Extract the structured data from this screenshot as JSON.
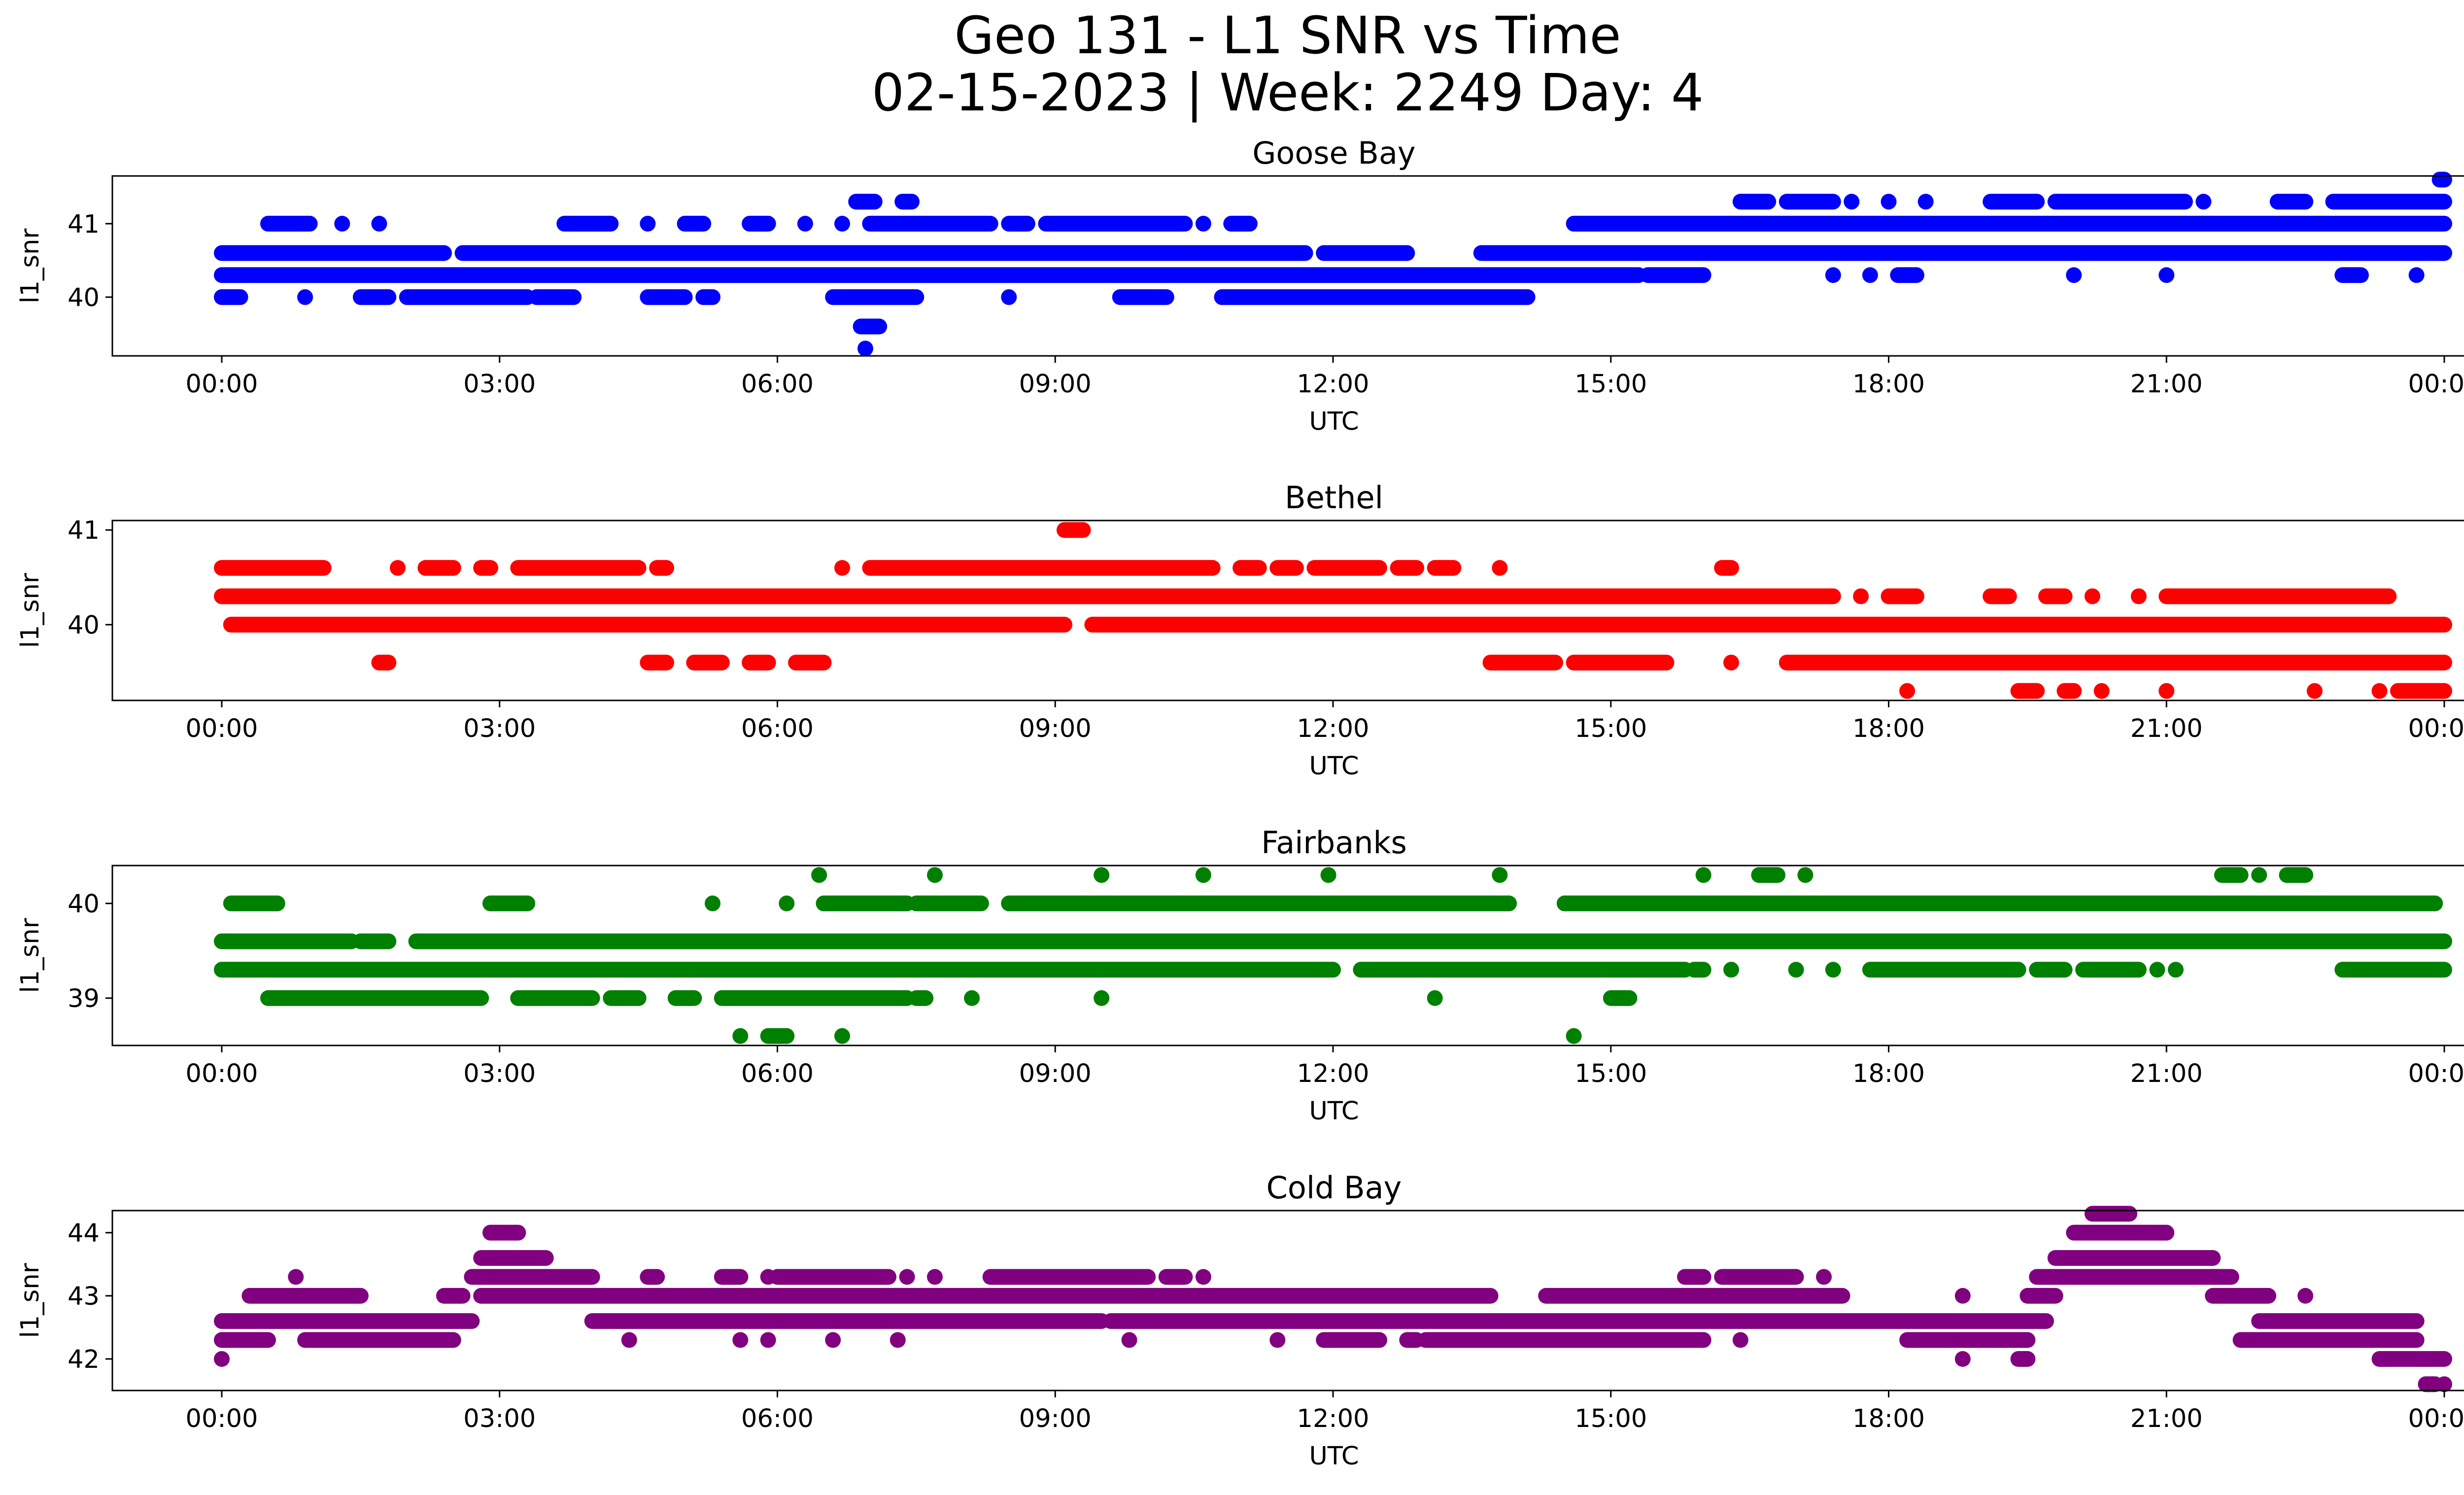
{
  "figure": {
    "title_line1": "Geo 131 - L1 SNR vs Time",
    "title_line2": "02-15-2023 | Week: 2249 Day: 4"
  },
  "chart_data": [
    {
      "type": "scatter",
      "title": "Goose Bay",
      "xlabel": "UTC",
      "ylabel": "l1_snr",
      "color": "#0000ff",
      "xticks": [
        "00:00",
        "03:00",
        "06:00",
        "09:00",
        "12:00",
        "15:00",
        "18:00",
        "21:00",
        "00:00"
      ],
      "yticks": [
        40,
        41
      ],
      "ylim": [
        39.2,
        41.65
      ],
      "levels": [
        {
          "y": 41.6,
          "ranges": [
            [
              23.95,
              24.0
            ]
          ]
        },
        {
          "y": 41.3,
          "ranges": [
            [
              6.85,
              7.05
            ],
            [
              7.35,
              7.45
            ],
            [
              16.4,
              16.7
            ],
            [
              16.9,
              17.4
            ],
            [
              17.6,
              17.6
            ],
            [
              18.0,
              18.0
            ],
            [
              18.4,
              18.4
            ],
            [
              19.1,
              19.6
            ],
            [
              19.8,
              21.2
            ],
            [
              21.4,
              21.4
            ],
            [
              22.2,
              22.5
            ],
            [
              22.8,
              24.0
            ]
          ]
        },
        {
          "y": 41.0,
          "ranges": [
            [
              0.5,
              0.95
            ],
            [
              1.3,
              1.3
            ],
            [
              1.7,
              1.7
            ],
            [
              3.7,
              4.2
            ],
            [
              4.6,
              4.6
            ],
            [
              5.0,
              5.2
            ],
            [
              5.7,
              5.9
            ],
            [
              6.3,
              6.3
            ],
            [
              6.7,
              6.7
            ],
            [
              7.0,
              8.3
            ],
            [
              8.5,
              8.7
            ],
            [
              8.9,
              10.4
            ],
            [
              10.6,
              10.6
            ],
            [
              10.9,
              11.1
            ],
            [
              14.6,
              24.0
            ]
          ]
        },
        {
          "y": 40.6,
          "ranges": [
            [
              0.0,
              2.4
            ],
            [
              2.6,
              11.7
            ],
            [
              11.9,
              12.8
            ],
            [
              13.6,
              24.0
            ]
          ]
        },
        {
          "y": 40.3,
          "ranges": [
            [
              0.0,
              15.3
            ],
            [
              15.4,
              16.0
            ],
            [
              17.4,
              17.4
            ],
            [
              17.8,
              17.8
            ],
            [
              18.1,
              18.3
            ],
            [
              20.0,
              20.0
            ],
            [
              21.0,
              21.0
            ],
            [
              22.9,
              23.1
            ],
            [
              23.7,
              23.7
            ]
          ]
        },
        {
          "y": 40.0,
          "ranges": [
            [
              0.0,
              0.2
            ],
            [
              0.9,
              0.9
            ],
            [
              1.5,
              1.8
            ],
            [
              2.0,
              3.3
            ],
            [
              3.4,
              3.8
            ],
            [
              4.6,
              5.0
            ],
            [
              5.2,
              5.3
            ],
            [
              6.6,
              7.5
            ],
            [
              8.5,
              8.5
            ],
            [
              9.7,
              10.2
            ],
            [
              10.8,
              14.1
            ]
          ]
        },
        {
          "y": 39.6,
          "ranges": [
            [
              6.9,
              7.1
            ]
          ]
        },
        {
          "y": 39.3,
          "ranges": [
            [
              6.95,
              6.95
            ]
          ]
        }
      ]
    },
    {
      "type": "scatter",
      "title": "Bethel",
      "xlabel": "UTC",
      "ylabel": "l1_snr",
      "color": "#ff0000",
      "xticks": [
        "00:00",
        "03:00",
        "06:00",
        "09:00",
        "12:00",
        "15:00",
        "18:00",
        "21:00",
        "00:00"
      ],
      "yticks": [
        40,
        41
      ],
      "ylim": [
        39.2,
        41.1
      ],
      "levels": [
        {
          "y": 41.0,
          "ranges": [
            [
              9.1,
              9.3
            ]
          ]
        },
        {
          "y": 40.6,
          "ranges": [
            [
              0.0,
              1.1
            ],
            [
              1.9,
              1.9
            ],
            [
              2.2,
              2.5
            ],
            [
              2.8,
              2.9
            ],
            [
              3.2,
              4.5
            ],
            [
              4.7,
              4.8
            ],
            [
              6.7,
              6.7
            ],
            [
              7.0,
              10.7
            ],
            [
              11.0,
              11.2
            ],
            [
              11.4,
              11.6
            ],
            [
              11.8,
              12.5
            ],
            [
              12.7,
              12.9
            ],
            [
              13.1,
              13.3
            ],
            [
              13.8,
              13.8
            ],
            [
              16.2,
              16.3
            ]
          ]
        },
        {
          "y": 40.3,
          "ranges": [
            [
              0.0,
              17.4
            ],
            [
              17.7,
              17.7
            ],
            [
              18.0,
              18.3
            ],
            [
              19.1,
              19.3
            ],
            [
              19.7,
              19.9
            ],
            [
              20.2,
              20.2
            ],
            [
              20.7,
              20.7
            ],
            [
              21.0,
              23.4
            ]
          ]
        },
        {
          "y": 40.0,
          "ranges": [
            [
              0.1,
              9.1
            ],
            [
              9.4,
              24.0
            ]
          ]
        },
        {
          "y": 39.6,
          "ranges": [
            [
              1.7,
              1.8
            ],
            [
              4.6,
              4.8
            ],
            [
              5.1,
              5.4
            ],
            [
              5.7,
              5.9
            ],
            [
              6.2,
              6.5
            ],
            [
              13.7,
              14.4
            ],
            [
              14.6,
              15.6
            ],
            [
              16.3,
              16.3
            ],
            [
              16.9,
              24.0
            ]
          ]
        },
        {
          "y": 39.3,
          "ranges": [
            [
              18.2,
              18.2
            ],
            [
              19.4,
              19.6
            ],
            [
              19.9,
              20.0
            ],
            [
              20.3,
              20.3
            ],
            [
              21.0,
              21.0
            ],
            [
              22.6,
              22.6
            ],
            [
              23.3,
              23.3
            ],
            [
              23.5,
              24.0
            ]
          ]
        }
      ]
    },
    {
      "type": "scatter",
      "title": "Fairbanks",
      "xlabel": "UTC",
      "ylabel": "l1_snr",
      "color": "#008000",
      "xticks": [
        "00:00",
        "03:00",
        "06:00",
        "09:00",
        "12:00",
        "15:00",
        "18:00",
        "21:00",
        "00:00"
      ],
      "yticks": [
        39,
        40
      ],
      "ylim": [
        38.5,
        40.4
      ],
      "levels": [
        {
          "y": 40.3,
          "ranges": [
            [
              6.45,
              6.45
            ],
            [
              7.7,
              7.7
            ],
            [
              9.5,
              9.5
            ],
            [
              10.6,
              10.6
            ],
            [
              11.95,
              11.95
            ],
            [
              13.8,
              13.8
            ],
            [
              16.0,
              16.0
            ],
            [
              16.6,
              16.8
            ],
            [
              17.1,
              17.1
            ],
            [
              21.6,
              21.8
            ],
            [
              22.0,
              22.0
            ],
            [
              22.3,
              22.5
            ]
          ]
        },
        {
          "y": 40.0,
          "ranges": [
            [
              0.1,
              0.6
            ],
            [
              2.9,
              3.3
            ],
            [
              5.3,
              5.3
            ],
            [
              6.1,
              6.1
            ],
            [
              6.5,
              7.4
            ],
            [
              7.5,
              8.2
            ],
            [
              8.5,
              13.9
            ],
            [
              14.5,
              23.9
            ]
          ]
        },
        {
          "y": 39.6,
          "ranges": [
            [
              0.0,
              1.4
            ],
            [
              1.5,
              1.8
            ],
            [
              2.1,
              24.0
            ]
          ]
        },
        {
          "y": 39.3,
          "ranges": [
            [
              0.0,
              12.0
            ],
            [
              12.3,
              15.8
            ],
            [
              15.9,
              16.0
            ],
            [
              16.3,
              16.3
            ],
            [
              17.0,
              17.0
            ],
            [
              17.4,
              17.4
            ],
            [
              17.8,
              19.4
            ],
            [
              19.6,
              19.9
            ],
            [
              20.1,
              20.7
            ],
            [
              20.9,
              20.9
            ],
            [
              21.1,
              21.1
            ],
            [
              22.9,
              24.0
            ]
          ]
        },
        {
          "y": 39.0,
          "ranges": [
            [
              0.5,
              2.8
            ],
            [
              3.2,
              4.0
            ],
            [
              4.2,
              4.5
            ],
            [
              4.9,
              5.1
            ],
            [
              5.4,
              7.4
            ],
            [
              7.5,
              7.6
            ],
            [
              8.1,
              8.1
            ],
            [
              9.5,
              9.5
            ],
            [
              13.1,
              13.1
            ],
            [
              15.0,
              15.2
            ]
          ]
        },
        {
          "y": 38.6,
          "ranges": [
            [
              5.6,
              5.6
            ],
            [
              5.9,
              6.1
            ],
            [
              6.7,
              6.7
            ],
            [
              14.6,
              14.6
            ]
          ]
        }
      ]
    },
    {
      "type": "scatter",
      "title": "Cold Bay",
      "xlabel": "UTC",
      "ylabel": "l1_snr",
      "color": "#800080",
      "xticks": [
        "00:00",
        "03:00",
        "06:00",
        "09:00",
        "12:00",
        "15:00",
        "18:00",
        "21:00",
        "00:00"
      ],
      "yticks": [
        42,
        43,
        44
      ],
      "ylim": [
        41.5,
        44.35
      ],
      "levels": [
        {
          "y": 44.3,
          "ranges": [
            [
              20.2,
              20.6
            ]
          ]
        },
        {
          "y": 44.0,
          "ranges": [
            [
              2.9,
              3.2
            ],
            [
              20.0,
              21.0
            ]
          ]
        },
        {
          "y": 43.6,
          "ranges": [
            [
              2.8,
              3.5
            ],
            [
              19.8,
              21.5
            ]
          ]
        },
        {
          "y": 43.3,
          "ranges": [
            [
              0.8,
              0.8
            ],
            [
              2.7,
              4.0
            ],
            [
              4.6,
              4.7
            ],
            [
              5.4,
              5.6
            ],
            [
              5.9,
              5.9
            ],
            [
              6.0,
              7.2
            ],
            [
              7.4,
              7.4
            ],
            [
              7.7,
              7.7
            ],
            [
              8.3,
              10.0
            ],
            [
              10.2,
              10.4
            ],
            [
              10.6,
              10.6
            ],
            [
              15.8,
              16.0
            ],
            [
              16.2,
              17.0
            ],
            [
              17.3,
              17.3
            ],
            [
              19.6,
              21.7
            ]
          ]
        },
        {
          "y": 43.0,
          "ranges": [
            [
              0.3,
              1.5
            ],
            [
              2.4,
              2.6
            ],
            [
              2.8,
              13.7
            ],
            [
              14.3,
              17.5
            ],
            [
              18.8,
              18.8
            ],
            [
              19.5,
              19.8
            ],
            [
              21.5,
              22.1
            ],
            [
              22.5,
              22.5
            ]
          ]
        },
        {
          "y": 42.6,
          "ranges": [
            [
              0.0,
              2.7
            ],
            [
              4.0,
              9.5
            ],
            [
              9.6,
              19.7
            ],
            [
              22.0,
              23.7
            ]
          ]
        },
        {
          "y": 42.3,
          "ranges": [
            [
              0.0,
              0.5
            ],
            [
              0.9,
              2.5
            ],
            [
              4.4,
              4.4
            ],
            [
              5.6,
              5.6
            ],
            [
              5.9,
              5.9
            ],
            [
              6.6,
              6.6
            ],
            [
              7.3,
              7.3
            ],
            [
              9.8,
              9.8
            ],
            [
              11.4,
              11.4
            ],
            [
              11.9,
              12.5
            ],
            [
              12.8,
              12.9
            ],
            [
              13.0,
              16.0
            ],
            [
              16.4,
              16.4
            ],
            [
              18.2,
              19.5
            ],
            [
              21.8,
              23.7
            ]
          ]
        },
        {
          "y": 42.0,
          "ranges": [
            [
              0.0,
              0.0
            ],
            [
              18.8,
              18.8
            ],
            [
              19.4,
              19.5
            ],
            [
              23.3,
              24.0
            ]
          ]
        },
        {
          "y": 41.6,
          "ranges": [
            [
              23.8,
              23.9
            ],
            [
              24.0,
              24.0
            ]
          ]
        }
      ]
    }
  ]
}
